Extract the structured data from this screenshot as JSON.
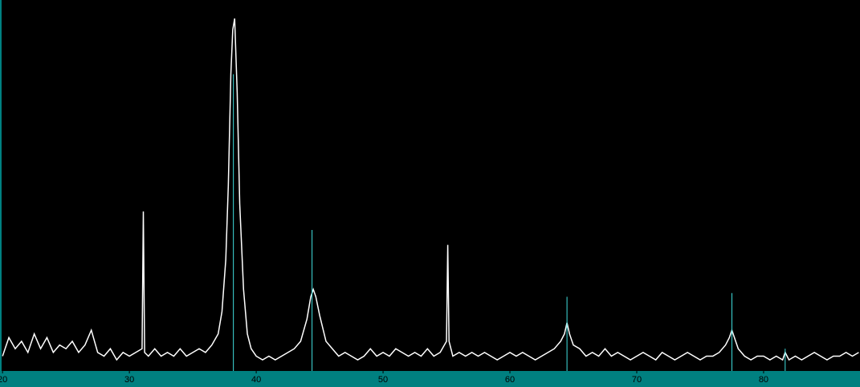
{
  "chart_data": {
    "type": "line",
    "xlim": [
      19.8,
      87.6
    ],
    "xticks": [
      20,
      30,
      40,
      50,
      60,
      70,
      80
    ],
    "ylim": [
      0,
      100
    ],
    "series": [
      {
        "style": "line",
        "color": "#ffffff",
        "x": [
          20,
          20.5,
          21,
          21.5,
          22,
          22.5,
          23,
          23.5,
          24,
          24.5,
          25,
          25.5,
          26,
          26.5,
          27,
          27.5,
          28,
          28.5,
          29,
          29.5,
          30,
          30.5,
          31,
          31.1,
          31.2,
          31.5,
          32,
          32.5,
          33,
          33.5,
          34,
          34.5,
          35,
          35.5,
          36,
          36.5,
          37,
          37.3,
          37.6,
          37.8,
          38,
          38.15,
          38.3,
          38.5,
          38.7,
          39,
          39.3,
          39.6,
          40,
          40.5,
          41,
          41.5,
          42,
          42.5,
          43,
          43.5,
          44,
          44.3,
          44.5,
          44.7,
          45,
          45.5,
          46,
          46.5,
          47,
          47.5,
          48,
          48.5,
          49,
          49.5,
          50,
          50.5,
          51,
          51.5,
          52,
          52.5,
          53,
          53.5,
          54,
          54.5,
          55,
          55.1,
          55.2,
          55.5,
          56,
          56.5,
          57,
          57.5,
          58,
          58.5,
          59,
          59.5,
          60,
          60.5,
          61,
          61.5,
          62,
          62.5,
          63,
          63.5,
          64,
          64.3,
          64.5,
          64.7,
          65,
          65.5,
          66,
          66.5,
          67,
          67.5,
          68,
          68.5,
          69,
          69.5,
          70,
          70.5,
          71,
          71.5,
          72,
          72.5,
          73,
          73.5,
          74,
          74.5,
          75,
          75.5,
          76,
          76.5,
          77,
          77.3,
          77.5,
          77.7,
          78,
          78.5,
          79,
          79.5,
          80,
          80.5,
          81,
          81.5,
          81.7,
          82,
          82.5,
          83,
          83.5,
          84,
          84.5,
          85,
          85.5,
          86,
          86.5,
          87,
          87.5
        ],
        "values": [
          4,
          9,
          6,
          8,
          5,
          10,
          6,
          9,
          5,
          7,
          6,
          8,
          5,
          7,
          11,
          5,
          4,
          6,
          3,
          5,
          4,
          5,
          6,
          43,
          5,
          4,
          6,
          4,
          5,
          4,
          6,
          4,
          5,
          6,
          5,
          7,
          10,
          16,
          30,
          50,
          80,
          92,
          95,
          75,
          45,
          22,
          10,
          6,
          4,
          3,
          4,
          3,
          4,
          5,
          6,
          8,
          14,
          20,
          22,
          20,
          15,
          8,
          6,
          4,
          5,
          4,
          3,
          4,
          6,
          4,
          5,
          4,
          6,
          5,
          4,
          5,
          4,
          6,
          4,
          5,
          8,
          34,
          8,
          4,
          5,
          4,
          5,
          4,
          5,
          4,
          3,
          4,
          5,
          4,
          5,
          4,
          3,
          4,
          5,
          6,
          8,
          10,
          13,
          10,
          7,
          6,
          4,
          5,
          4,
          6,
          4,
          5,
          4,
          3,
          4,
          5,
          4,
          3,
          5,
          4,
          3,
          4,
          5,
          4,
          3,
          4,
          4,
          5,
          7,
          9,
          11,
          9,
          6,
          4,
          3,
          4,
          4,
          3,
          4,
          3,
          5,
          3,
          4,
          3,
          4,
          5,
          4,
          3,
          4,
          4,
          5,
          4,
          5
        ]
      },
      {
        "style": "stick",
        "color": "#40e0e0",
        "x": [
          38.2,
          44.4,
          64.5,
          77.5,
          81.7
        ],
        "values": [
          80,
          38,
          20,
          21,
          6
        ]
      }
    ]
  }
}
